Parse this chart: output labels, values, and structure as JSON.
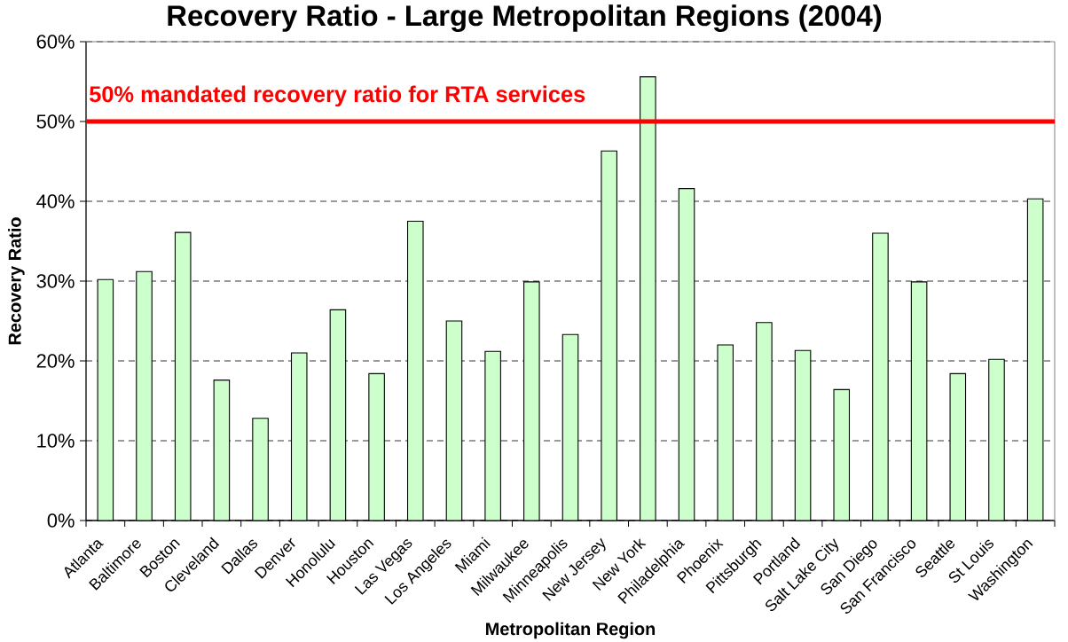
{
  "chart_data": {
    "type": "bar",
    "title": "Recovery Ratio - Large Metropolitan Regions (2004)",
    "xlabel": "Metropolitan Region",
    "ylabel": "Recovery Ratio",
    "categories": [
      "Atlanta",
      "Baltimore",
      "Boston",
      "Cleveland",
      "Dallas",
      "Denver",
      "Honolulu",
      "Houston",
      "Las Vegas",
      "Los Angeles",
      "Miami",
      "Milwaukee",
      "Minneapolis",
      "New Jersey",
      "New York",
      "Philadelphia",
      "Phoenix",
      "Pittsburgh",
      "Portland",
      "Salt Lake City",
      "San Diego",
      "San Francisco",
      "Seattle",
      "St Louis",
      "Washington"
    ],
    "values": [
      30.2,
      31.2,
      36.1,
      17.6,
      12.8,
      21.0,
      26.4,
      18.4,
      37.5,
      25.0,
      21.2,
      29.9,
      23.3,
      46.3,
      55.6,
      41.6,
      22.0,
      24.8,
      21.3,
      16.4,
      36.0,
      29.9,
      18.4,
      20.2,
      40.3
    ],
    "color": "#ccffcc",
    "ylim": [
      0,
      60
    ],
    "yticks": [
      {
        "value": 0,
        "label": "0%"
      },
      {
        "value": 10,
        "label": "10%"
      },
      {
        "value": 20,
        "label": "20%"
      },
      {
        "value": 30,
        "label": "30%"
      },
      {
        "value": 40,
        "label": "40%"
      },
      {
        "value": 50,
        "label": "50%"
      },
      {
        "value": 60,
        "label": "60%"
      }
    ],
    "grid": "y",
    "ref_lines": [
      {
        "axis": "y",
        "value": 50,
        "label": "50% mandated recovery ratio for RTA services",
        "color": "#ff0000",
        "line_style": "solid"
      }
    ]
  }
}
